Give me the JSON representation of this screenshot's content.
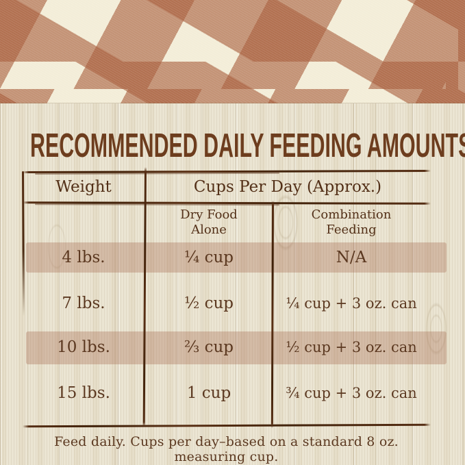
{
  "title": "RECOMMENDED DAILY FEEDING AMOUNTS:",
  "table": {
    "weight_header": "Weight",
    "cups_header": "Cups Per Day (Approx.)",
    "dry_subheader_line1": "Dry Food",
    "dry_subheader_line2": "Alone",
    "combo_subheader_line1": "Combination",
    "combo_subheader_line2": "Feeding",
    "rows": [
      {
        "weight": "4 lbs.",
        "dry_food_alone": "¼ cup",
        "combination_feeding": "N/A",
        "highlighted": true
      },
      {
        "weight": "7 lbs.",
        "dry_food_alone": "½ cup",
        "combination_feeding": "¼ cup + 3 oz. can",
        "highlighted": false
      },
      {
        "weight": "10 lbs.",
        "dry_food_alone": "⅔ cup",
        "combination_feeding": "½ cup + 3 oz. can",
        "highlighted": true
      },
      {
        "weight": "15 lbs.",
        "dry_food_alone": "1 cup",
        "combination_feeding": "¾ cup + 3 oz. can",
        "highlighted": false
      }
    ]
  },
  "footnote": "Feed daily. Cups per day–based on a standard 8 oz. measuring cup.",
  "chart_data": {
    "type": "table",
    "title": "RECOMMENDED DAILY FEEDING AMOUNTS:",
    "columns": [
      "Weight",
      "Dry Food Alone",
      "Combination Feeding"
    ],
    "rows": [
      [
        "4 lbs.",
        "¼ cup",
        "N/A"
      ],
      [
        "7 lbs.",
        "½ cup",
        "¼ cup + 3 oz. can"
      ],
      [
        "10 lbs.",
        "⅔ cup",
        "½ cup + 3 oz. can"
      ],
      [
        "15 lbs.",
        "1 cup",
        "¾ cup + 3 oz. can"
      ]
    ],
    "note": "Feed daily. Cups per day–based on a standard 8 oz. measuring cup."
  },
  "colors": {
    "gingham_dark": "#a76b47",
    "gingham_mid": "#c9917b",
    "gingham_cream": "#f3edd8",
    "wood_base": "#ebe5d3",
    "highlight_band": "#d3bca6",
    "text_brown": "#5b3820",
    "line_brown": "#552d13",
    "title_brown": "#6d3d1e"
  }
}
